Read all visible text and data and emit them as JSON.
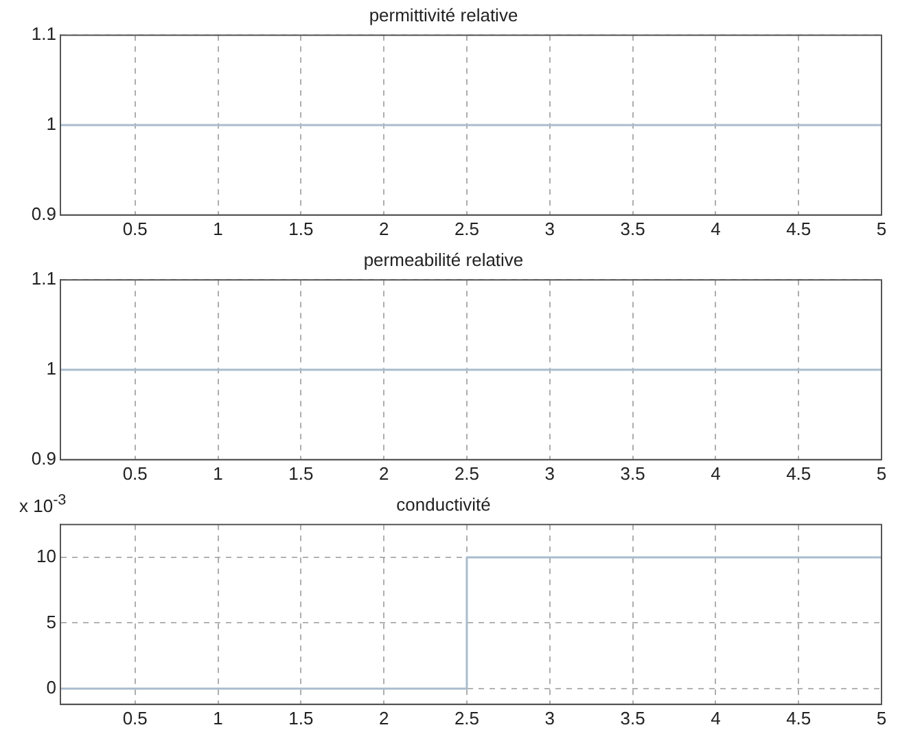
{
  "chart_data": [
    {
      "type": "line",
      "title": "permittivité relative",
      "x": [
        0.05,
        5
      ],
      "values": [
        1,
        1
      ],
      "color": "#a9bccd",
      "xlim": [
        0.05,
        5
      ],
      "xticks": [
        0.5,
        1,
        1.5,
        2,
        2.5,
        3,
        3.5,
        4,
        4.5,
        5
      ],
      "ylim": [
        0.9,
        1.1
      ],
      "yticks": [
        0.9,
        1,
        1.1
      ],
      "grid": true,
      "marker": "none",
      "line_style": "solid"
    },
    {
      "type": "line",
      "title": "permeabilité relative",
      "x": [
        0.05,
        5
      ],
      "values": [
        1,
        1
      ],
      "color": "#a9bccd",
      "xlim": [
        0.05,
        5
      ],
      "xticks": [
        0.5,
        1,
        1.5,
        2,
        2.5,
        3,
        3.5,
        4,
        4.5,
        5
      ],
      "ylim": [
        0.9,
        1.1
      ],
      "yticks": [
        0.9,
        1,
        1.1
      ],
      "grid": true,
      "marker": "none",
      "line_style": "solid"
    },
    {
      "type": "line",
      "title": "conductivité",
      "annotations": [
        "x 10$^{-3}$"
      ],
      "x": [
        0.05,
        2.5,
        2.5,
        5
      ],
      "values": [
        0,
        0,
        10,
        10
      ],
      "color": "#a9bccd",
      "xlim": [
        0.05,
        5
      ],
      "xticks": [
        0.5,
        1,
        1.5,
        2,
        2.5,
        3,
        3.5,
        4,
        4.5,
        5
      ],
      "ylim": [
        -1.2,
        12.5
      ],
      "yticks": [
        0,
        5,
        10
      ],
      "grid": true,
      "marker": "none",
      "line_style": "solid"
    }
  ]
}
